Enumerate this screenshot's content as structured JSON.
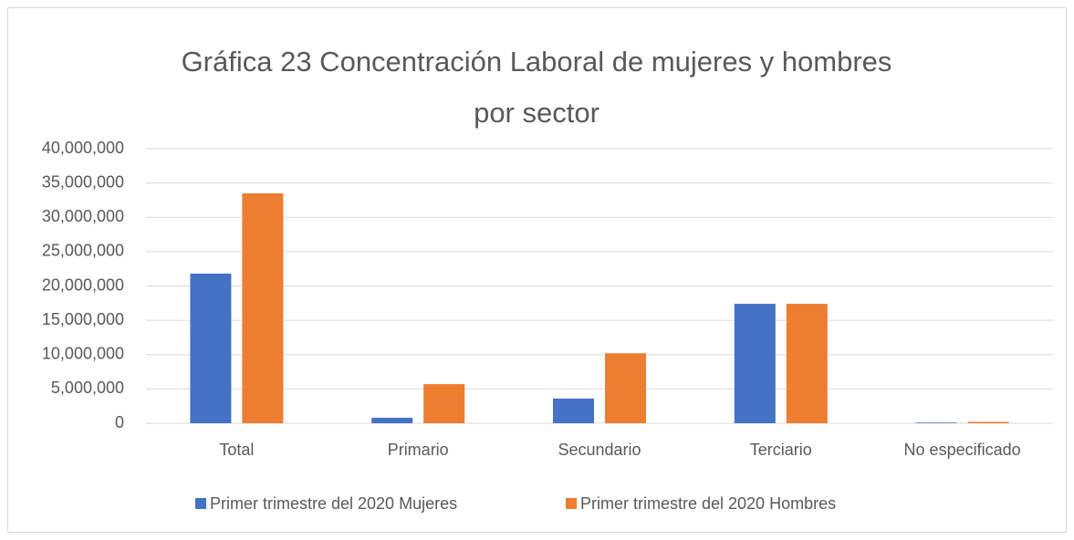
{
  "chart_data": {
    "type": "bar",
    "title": "Gráfica 23 Concentración Laboral de mujeres y hombres por sector",
    "categories": [
      "Total",
      "Primario",
      "Secundario",
      "Terciario",
      "No especificado"
    ],
    "series": [
      {
        "name": "Primer trimestre del 2020 Mujeres",
        "color": "#4472c4",
        "values": [
          21800000,
          800000,
          3600000,
          17400000,
          100000
        ]
      },
      {
        "name": "Primer trimestre del 2020 Hombres",
        "color": "#ed7d31",
        "values": [
          33500000,
          5700000,
          10200000,
          17400000,
          200000
        ]
      }
    ],
    "ylim": [
      0,
      40000000
    ],
    "yticks": [
      0,
      {
        "value": 5000000,
        "label": "5,000,000"
      },
      {
        "value": 10000000,
        "label": "10,000,000"
      },
      {
        "value": 15000000,
        "label": "15,000,000"
      },
      {
        "value": 20000000,
        "label": "20,000,000"
      },
      {
        "value": 25000000,
        "label": "25,000,000"
      },
      {
        "value": 30000000,
        "label": "30,000,000"
      },
      {
        "value": 35000000,
        "label": "35,000,000"
      },
      {
        "value": 40000000,
        "label": "40,000,000"
      }
    ],
    "grid": true,
    "legend": "bottom"
  }
}
